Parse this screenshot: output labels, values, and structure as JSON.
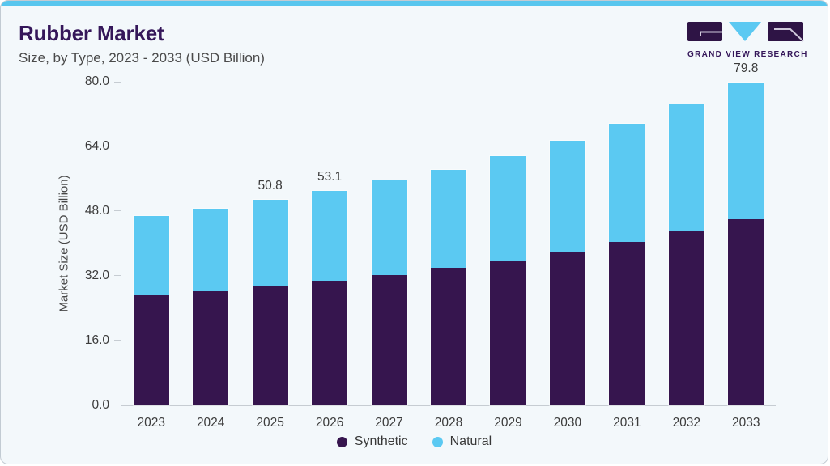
{
  "header": {
    "title": "Rubber Market",
    "subtitle": "Size, by Type, 2023 - 2033 (USD Billion)"
  },
  "logo": {
    "text": "GRAND VIEW RESEARCH",
    "mark_purple": "#2e1445",
    "mark_blue": "#5bc9f2",
    "mark_stroke": "#cfc8da"
  },
  "colors": {
    "card_bg": "#f3f8fb",
    "accent_bar": "#58c6ee",
    "title": "#35175a",
    "axis_line": "#c6ccd2",
    "synthetic": "#36154e",
    "natural": "#5bc9f2"
  },
  "chart_data": {
    "type": "bar",
    "stacked": true,
    "title": "Rubber Market",
    "subtitle": "Size, by Type, 2023 - 2033 (USD Billion)",
    "xlabel": "",
    "ylabel": "Market Size (USD Billion)",
    "ylim": [
      0,
      80
    ],
    "yticks": [
      0,
      16,
      32,
      48,
      64,
      80
    ],
    "ytick_labels": [
      "0.0",
      "16.0",
      "32.0",
      "48.0",
      "64.0",
      "80.0"
    ],
    "grid": false,
    "legend_position": "bottom-center",
    "categories": [
      "2023",
      "2024",
      "2025",
      "2026",
      "2027",
      "2028",
      "2029",
      "2030",
      "2031",
      "2032",
      "2033"
    ],
    "series": [
      {
        "name": "Synthetic",
        "color": "#36154e",
        "values": [
          27.2,
          28.3,
          29.4,
          30.8,
          32.2,
          34.0,
          35.6,
          37.8,
          40.4,
          43.2,
          46.1
        ]
      },
      {
        "name": "Natural",
        "color": "#5bc9f2",
        "values": [
          19.6,
          20.4,
          21.4,
          22.3,
          23.4,
          24.2,
          26.0,
          27.7,
          29.2,
          31.3,
          33.7
        ]
      }
    ],
    "annotations": [
      {
        "category": "2025",
        "text": "50.8"
      },
      {
        "category": "2026",
        "text": "53.1"
      },
      {
        "category": "2033",
        "text": "79.8"
      }
    ]
  }
}
